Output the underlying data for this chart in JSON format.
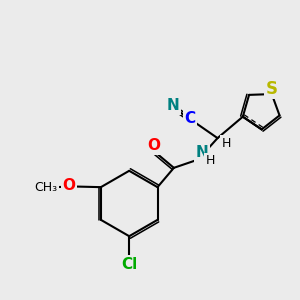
{
  "bg_color": "#ebebeb",
  "bond_color": "#000000",
  "bond_width": 1.5,
  "atoms": {
    "S": {
      "color": "#b8b800",
      "fontsize": 11,
      "fontweight": "bold"
    },
    "N": {
      "color": "#008080",
      "fontsize": 11,
      "fontweight": "bold"
    },
    "O": {
      "color": "#ff0000",
      "fontsize": 11,
      "fontweight": "bold"
    },
    "Cl": {
      "color": "#00aa00",
      "fontsize": 11,
      "fontweight": "bold"
    },
    "C": {
      "color": "#0000ff",
      "fontsize": 11,
      "fontweight": "bold"
    },
    "H": {
      "color": "#000000",
      "fontsize": 9,
      "fontweight": "normal"
    }
  },
  "figsize": [
    3.0,
    3.0
  ],
  "dpi": 100
}
